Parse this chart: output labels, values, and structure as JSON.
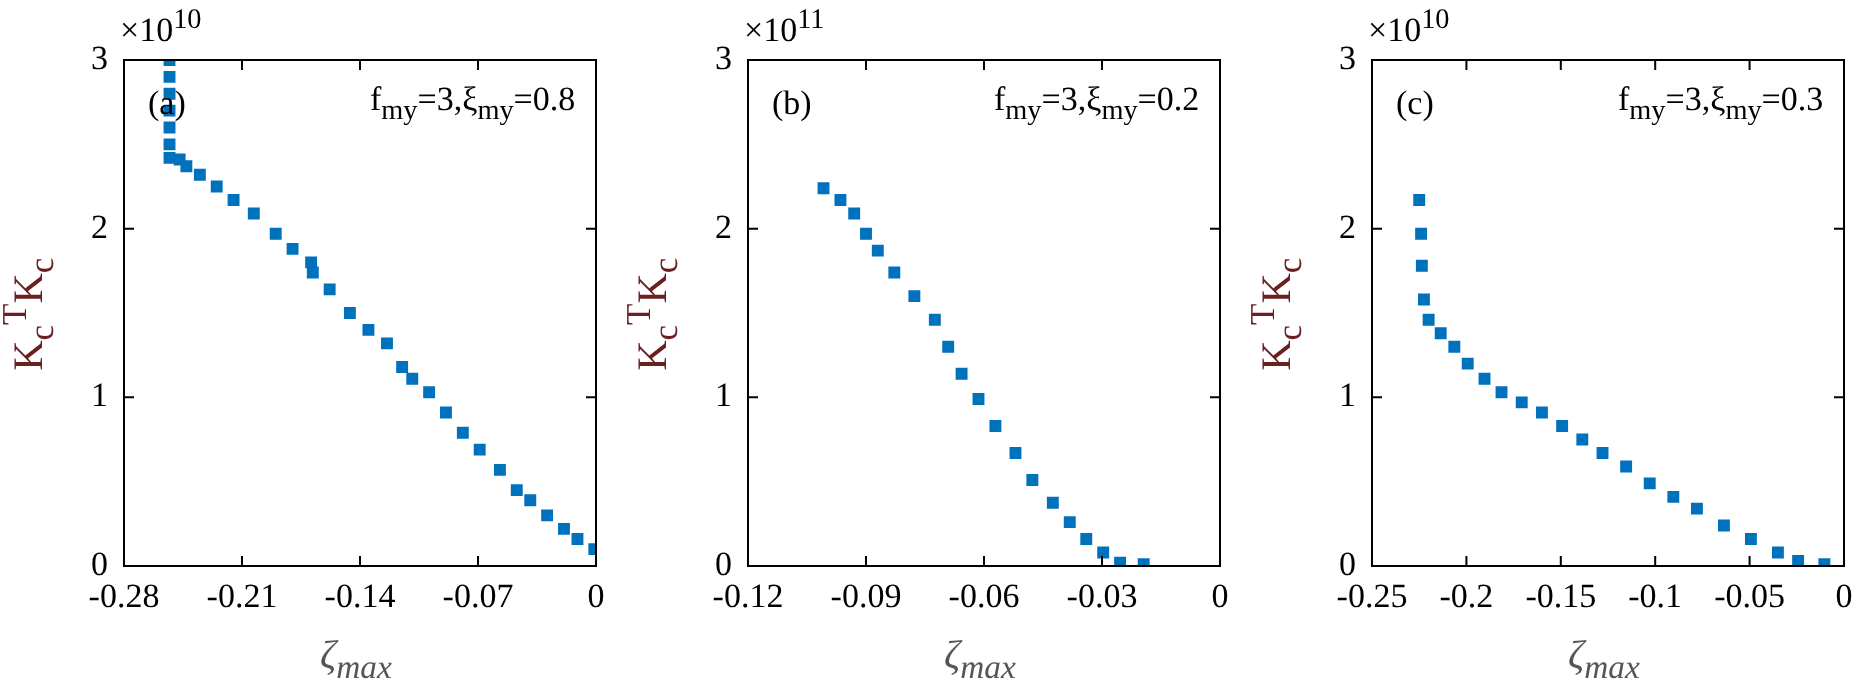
{
  "chart_data": [
    {
      "type": "scatter",
      "xlabel": "ζ$_{max}$",
      "ylabel": "K$_{c}$$^{T}$K$_{c}$",
      "annotations": [
        "×10$^{10}$",
        "(a)",
        "f$_{my}$=3,ξ$_{my}$=0.8"
      ],
      "color": "#0072bd",
      "marker": "square",
      "x": [
        -0.253,
        -0.253,
        -0.253,
        -0.253,
        -0.253,
        -0.253,
        -0.253,
        -0.247,
        -0.243,
        -0.235,
        -0.225,
        -0.215,
        -0.203,
        -0.19,
        -0.18,
        -0.169,
        -0.168,
        -0.158,
        -0.146,
        -0.135,
        -0.124,
        -0.115,
        -0.109,
        -0.099,
        -0.089,
        -0.079,
        -0.069,
        -0.057,
        -0.047,
        -0.039,
        -0.029,
        -0.019,
        -0.011,
        -0.001
      ],
      "values": [
        3.0,
        2.9,
        2.8,
        2.7,
        2.6,
        2.5,
        2.42,
        2.41,
        2.37,
        2.32,
        2.25,
        2.17,
        2.09,
        1.97,
        1.88,
        1.8,
        1.74,
        1.64,
        1.5,
        1.4,
        1.32,
        1.18,
        1.11,
        1.03,
        0.91,
        0.79,
        0.69,
        0.57,
        0.45,
        0.39,
        0.3,
        0.22,
        0.16,
        0.1
      ],
      "xlim": [
        -0.28,
        0
      ],
      "xticks": [
        -0.28,
        -0.21,
        -0.14,
        -0.07,
        0
      ],
      "ylim": [
        0,
        3
      ],
      "yticks": [
        0,
        1,
        2,
        3
      ]
    },
    {
      "type": "scatter",
      "xlabel": "ζ$_{max}$",
      "ylabel": "K$_{c}$$^{T}$K$_{c}$",
      "annotations": [
        "×10$^{11}$",
        "(b)",
        "f$_{my}$=3,ξ$_{my}$=0.2"
      ],
      "color": "#0072bd",
      "marker": "square",
      "x": [
        -0.1008,
        -0.0965,
        -0.093,
        -0.09,
        -0.087,
        -0.0828,
        -0.0777,
        -0.0725,
        -0.0691,
        -0.0657,
        -0.0614,
        -0.0571,
        -0.052,
        -0.0477,
        -0.0425,
        -0.0382,
        -0.034,
        -0.0297,
        -0.0254,
        -0.0194
      ],
      "values": [
        2.24,
        2.17,
        2.09,
        1.97,
        1.87,
        1.74,
        1.6,
        1.46,
        1.3,
        1.14,
        0.99,
        0.83,
        0.67,
        0.51,
        0.375,
        0.26,
        0.16,
        0.08,
        0.02,
        0.01
      ],
      "xlim": [
        -0.12,
        0
      ],
      "xticks": [
        -0.12,
        -0.09,
        -0.06,
        -0.03,
        0
      ],
      "ylim": [
        0,
        3
      ],
      "yticks": [
        0,
        1,
        2,
        3
      ]
    },
    {
      "type": "scatter",
      "xlabel": "ζ$_{max}$",
      "ylabel": "K$_{c}$$^{T}$K$_{c}$",
      "annotations": [
        "×10$^{10}$",
        "(c)",
        "f$_{my}$=3,ξ$_{my}$=0.3"
      ],
      "color": "#0072bd",
      "marker": "square",
      "x": [
        -0.225,
        -0.224,
        -0.2236,
        -0.2225,
        -0.22,
        -0.2136,
        -0.2064,
        -0.1993,
        -0.1904,
        -0.1814,
        -0.1707,
        -0.16,
        -0.1493,
        -0.1386,
        -0.1279,
        -0.1154,
        -0.1029,
        -0.0904,
        -0.0779,
        -0.0636,
        -0.0493,
        -0.035,
        -0.0243,
        -0.0104
      ],
      "values": [
        2.17,
        1.97,
        1.78,
        1.58,
        1.46,
        1.38,
        1.3,
        1.2,
        1.11,
        1.03,
        0.97,
        0.91,
        0.83,
        0.75,
        0.67,
        0.59,
        0.49,
        0.41,
        0.34,
        0.24,
        0.16,
        0.08,
        0.03,
        0.01
      ],
      "xlim": [
        -0.25,
        0
      ],
      "xticks": [
        -0.25,
        -0.2,
        -0.15,
        -0.1,
        -0.05,
        0
      ],
      "ylim": [
        0,
        3
      ],
      "yticks": [
        0,
        1,
        2,
        3
      ]
    }
  ]
}
